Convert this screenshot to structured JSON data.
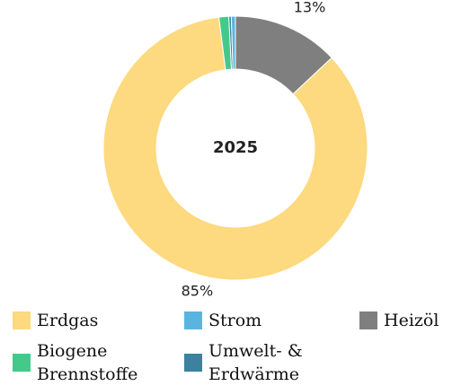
{
  "chart_data": {
    "type": "donut",
    "center_label": "2025",
    "series": [
      {
        "name": "Heizöl",
        "color": "#7f7f7f",
        "values": [
          13
        ]
      },
      {
        "name": "Erdgas",
        "color": "#fdd97f",
        "values": [
          85
        ]
      },
      {
        "name": "Biogene Brennstoffe",
        "color": "#45c98a",
        "values": [
          1.2
        ]
      },
      {
        "name": "Umwelt- & Erdwärme",
        "color": "#3a82a0",
        "values": [
          0.3
        ]
      },
      {
        "name": "Strom",
        "color": "#5ab4e0",
        "values": [
          0.5
        ]
      }
    ],
    "value_labels": [
      "13%",
      "85%",
      null,
      null,
      null
    ]
  }
}
